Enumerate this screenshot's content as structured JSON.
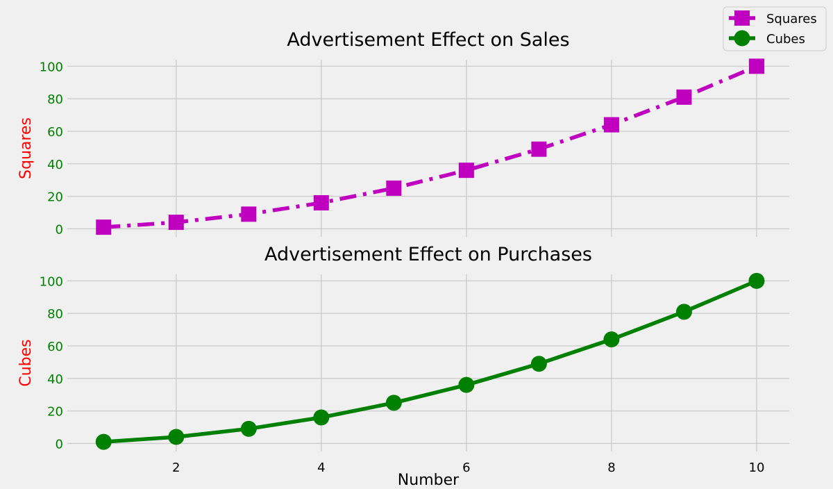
{
  "chart_data": [
    {
      "type": "line",
      "title": "Advertisement Effect on Sales",
      "xlabel": "",
      "ylabel": "Squares",
      "x": [
        1,
        2,
        3,
        4,
        5,
        6,
        7,
        8,
        9,
        10
      ],
      "xlim": [
        0.5,
        10.45
      ],
      "ylim": [
        -4.95,
        104
      ],
      "xticks": [
        2,
        4,
        6,
        8,
        10
      ],
      "yticks": [
        0,
        20,
        40,
        60,
        80,
        100
      ],
      "show_xtick_labels": false,
      "grid": true,
      "series": [
        {
          "name": "Squares",
          "values": [
            1,
            4,
            9,
            16,
            25,
            36,
            49,
            64,
            81,
            100
          ],
          "color": "#bf00bf",
          "marker": "square",
          "linestyle": "dashdot"
        }
      ]
    },
    {
      "type": "line",
      "title": "Advertisement Effect on Purchases",
      "xlabel": "Number",
      "ylabel": "Cubes",
      "x": [
        1,
        2,
        3,
        4,
        5,
        6,
        7,
        8,
        9,
        10
      ],
      "xlim": [
        0.5,
        10.45
      ],
      "ylim": [
        -4.95,
        104
      ],
      "xticks": [
        2,
        4,
        6,
        8,
        10
      ],
      "yticks": [
        0,
        20,
        40,
        60,
        80,
        100
      ],
      "show_xtick_labels": true,
      "grid": true,
      "series": [
        {
          "name": "Cubes",
          "values": [
            1,
            4,
            9,
            16,
            25,
            36,
            49,
            64,
            81,
            100
          ],
          "color": "#008000",
          "marker": "circle",
          "linestyle": "solid"
        }
      ]
    }
  ],
  "legend": {
    "placement": "top-right",
    "items": [
      {
        "label": "Squares",
        "color": "#bf00bf",
        "marker": "square"
      },
      {
        "label": "Cubes",
        "color": "#008000",
        "marker": "circle"
      }
    ]
  },
  "colors": {
    "background": "#f0f0f0",
    "grid": "#cbcbcb",
    "tick_label": "#008000",
    "axis_label": "#ff0000",
    "text": "#000000"
  }
}
